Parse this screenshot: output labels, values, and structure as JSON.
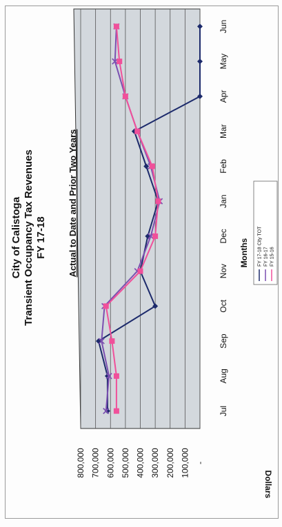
{
  "chart_data": {
    "type": "line",
    "title": [
      "City of Calistoga",
      "Transient Occupancy Tax Revenues",
      "FY 17-18"
    ],
    "subtitle": "Actual to Date and Prior Two Years",
    "xlabel": "Months",
    "ylabel": "Dollars",
    "categories": [
      "Jul",
      "Aug",
      "Sep",
      "Oct",
      "Nov",
      "Dec",
      "Jan",
      "Feb",
      "Mar",
      "Apr",
      "May",
      "Jun"
    ],
    "ylim": [
      0,
      800000
    ],
    "yticks": [
      "-",
      "100,000",
      "200,000",
      "300,000",
      "400,000",
      "500,000",
      "600,000",
      "700,000",
      "800,000"
    ],
    "grid": "horizontal",
    "legend_position": "bottom",
    "series": [
      {
        "name": "FY 17-18 City TOT",
        "color": "#1c2a6b",
        "marker": "diamond",
        "values": [
          620000,
          620000,
          680000,
          300000,
          400000,
          350000,
          280000,
          360000,
          440000,
          0,
          0,
          0
        ]
      },
      {
        "name": "FY 16-17",
        "color": "#7b4fb0",
        "marker": "x",
        "values": [
          630000,
          610000,
          660000,
          640000,
          420000,
          330000,
          270000,
          330000,
          420000,
          500000,
          570000,
          560000
        ]
      },
      {
        "name": "FY 15-16",
        "color": "#f0509a",
        "marker": "square",
        "values": [
          560000,
          560000,
          590000,
          630000,
          400000,
          300000,
          280000,
          320000,
          420000,
          500000,
          540000,
          560000
        ]
      }
    ]
  }
}
